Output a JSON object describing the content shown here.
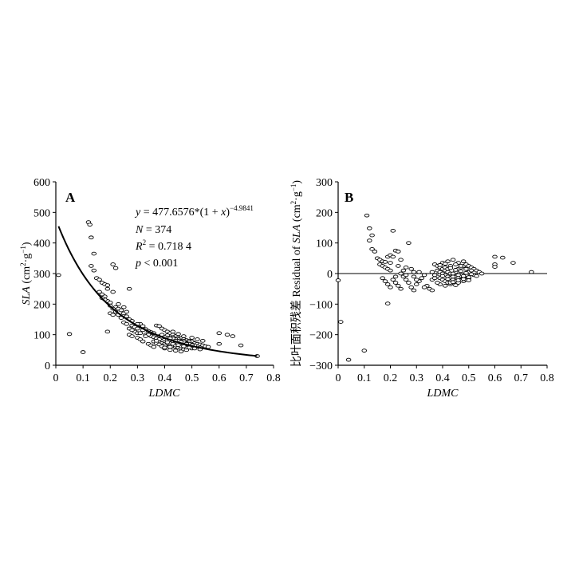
{
  "chart_data": [
    {
      "type": "scatter",
      "panel": "A",
      "xlabel": "LDMC",
      "ylabel_main": "SLA",
      "ylabel_unit_open": " (cm",
      "ylabel_unit_sup1": "2",
      "ylabel_unit_mid": "·g",
      "ylabel_unit_sup2": "−1",
      "ylabel_unit_close": ")",
      "xlim": [
        0,
        0.8
      ],
      "ylim": [
        0,
        600
      ],
      "xticks": [
        "0",
        "0.1",
        "0.2",
        "0.3",
        "0.4",
        "0.5",
        "0.6",
        "0.7",
        "0.8"
      ],
      "yticks": [
        "0",
        "100",
        "200",
        "300",
        "400",
        "500",
        "600"
      ],
      "annotation": {
        "eq_y": "y",
        "eq_body": " = 477.6576*(1 + ",
        "eq_x": "x",
        "eq_close": ")",
        "eq_exp": "−4.9841",
        "n_label": "N",
        "n_value": " = 374",
        "r2_label": "R",
        "r2_sup": "2",
        "r2_value": " = 0.718 4",
        "p_label": "p",
        "p_value": " < 0.001"
      },
      "fit": {
        "a": 477.6576,
        "b": -4.9841,
        "x_range": [
          0.01,
          0.74
        ]
      },
      "points": [
        [
          0.01,
          295
        ],
        [
          0.05,
          102
        ],
        [
          0.1,
          43
        ],
        [
          0.12,
          468
        ],
        [
          0.125,
          460
        ],
        [
          0.13,
          418
        ],
        [
          0.14,
          365
        ],
        [
          0.13,
          325
        ],
        [
          0.14,
          310
        ],
        [
          0.15,
          285
        ],
        [
          0.16,
          280
        ],
        [
          0.17,
          270
        ],
        [
          0.18,
          265
        ],
        [
          0.19,
          262
        ],
        [
          0.16,
          240
        ],
        [
          0.17,
          232
        ],
        [
          0.18,
          225
        ],
        [
          0.19,
          210
        ],
        [
          0.2,
          205
        ],
        [
          0.21,
          330
        ],
        [
          0.22,
          318
        ],
        [
          0.2,
          170
        ],
        [
          0.21,
          165
        ],
        [
          0.22,
          190
        ],
        [
          0.23,
          185
        ],
        [
          0.19,
          110
        ],
        [
          0.24,
          180
        ],
        [
          0.25,
          170
        ],
        [
          0.26,
          160
        ],
        [
          0.27,
          150
        ],
        [
          0.25,
          140
        ],
        [
          0.26,
          135
        ],
        [
          0.27,
          250
        ],
        [
          0.28,
          130
        ],
        [
          0.29,
          125
        ],
        [
          0.3,
          120
        ],
        [
          0.27,
          100
        ],
        [
          0.28,
          95
        ],
        [
          0.3,
          90
        ],
        [
          0.31,
          135
        ],
        [
          0.32,
          128
        ],
        [
          0.33,
          118
        ],
        [
          0.34,
          112
        ],
        [
          0.35,
          108
        ],
        [
          0.36,
          105
        ],
        [
          0.31,
          85
        ],
        [
          0.32,
          78
        ],
        [
          0.34,
          70
        ],
        [
          0.35,
          65
        ],
        [
          0.36,
          60
        ],
        [
          0.37,
          130
        ],
        [
          0.38,
          128
        ],
        [
          0.39,
          120
        ],
        [
          0.4,
          115
        ],
        [
          0.41,
          110
        ],
        [
          0.42,
          105
        ],
        [
          0.43,
          100
        ],
        [
          0.44,
          95
        ],
        [
          0.45,
          90
        ],
        [
          0.46,
          88
        ],
        [
          0.47,
          85
        ],
        [
          0.48,
          82
        ],
        [
          0.49,
          80
        ],
        [
          0.5,
          78
        ],
        [
          0.38,
          95
        ],
        [
          0.39,
          90
        ],
        [
          0.4,
          85
        ],
        [
          0.41,
          82
        ],
        [
          0.42,
          80
        ],
        [
          0.43,
          78
        ],
        [
          0.44,
          75
        ],
        [
          0.45,
          72
        ],
        [
          0.46,
          70
        ],
        [
          0.47,
          68
        ],
        [
          0.48,
          65
        ],
        [
          0.49,
          62
        ],
        [
          0.5,
          60
        ],
        [
          0.38,
          75
        ],
        [
          0.39,
          72
        ],
        [
          0.4,
          70
        ],
        [
          0.41,
          68
        ],
        [
          0.42,
          65
        ],
        [
          0.43,
          62
        ],
        [
          0.44,
          60
        ],
        [
          0.45,
          58
        ],
        [
          0.46,
          55
        ],
        [
          0.47,
          52
        ],
        [
          0.48,
          50
        ],
        [
          0.4,
          55
        ],
        [
          0.42,
          50
        ],
        [
          0.44,
          48
        ],
        [
          0.46,
          45
        ],
        [
          0.39,
          100
        ],
        [
          0.41,
          98
        ],
        [
          0.43,
          92
        ],
        [
          0.45,
          85
        ],
        [
          0.47,
          80
        ],
        [
          0.49,
          75
        ],
        [
          0.51,
          72
        ],
        [
          0.52,
          70
        ],
        [
          0.53,
          68
        ],
        [
          0.54,
          65
        ],
        [
          0.55,
          62
        ],
        [
          0.56,
          60
        ],
        [
          0.4,
          65
        ],
        [
          0.42,
          72
        ],
        [
          0.44,
          85
        ],
        [
          0.46,
          78
        ],
        [
          0.48,
          72
        ],
        [
          0.5,
          68
        ],
        [
          0.52,
          62
        ],
        [
          0.41,
          90
        ],
        [
          0.43,
          88
        ],
        [
          0.45,
          80
        ],
        [
          0.47,
          75
        ],
        [
          0.49,
          70
        ],
        [
          0.51,
          65
        ],
        [
          0.53,
          58
        ],
        [
          0.6,
          105
        ],
        [
          0.63,
          100
        ],
        [
          0.65,
          95
        ],
        [
          0.6,
          70
        ],
        [
          0.68,
          65
        ],
        [
          0.74,
          30
        ],
        [
          0.36,
          78
        ],
        [
          0.37,
          72
        ],
        [
          0.38,
          68
        ],
        [
          0.39,
          62
        ],
        [
          0.4,
          58
        ],
        [
          0.42,
          60
        ],
        [
          0.44,
          65
        ],
        [
          0.46,
          62
        ],
        [
          0.48,
          58
        ],
        [
          0.5,
          55
        ],
        [
          0.35,
          95
        ],
        [
          0.36,
          92
        ],
        [
          0.37,
          88
        ],
        [
          0.33,
          100
        ],
        [
          0.29,
          110
        ],
        [
          0.3,
          105
        ],
        [
          0.24,
          155
        ],
        [
          0.23,
          165
        ],
        [
          0.22,
          175
        ],
        [
          0.21,
          185
        ],
        [
          0.2,
          195
        ],
        [
          0.18,
          215
        ],
        [
          0.17,
          220
        ],
        [
          0.19,
          250
        ],
        [
          0.21,
          240
        ],
        [
          0.23,
          200
        ],
        [
          0.25,
          190
        ],
        [
          0.26,
          175
        ],
        [
          0.28,
          145
        ],
        [
          0.3,
          135
        ],
        [
          0.32,
          115
        ],
        [
          0.34,
          100
        ],
        [
          0.27,
          120
        ],
        [
          0.28,
          115
        ],
        [
          0.31,
          105
        ],
        [
          0.33,
          95
        ],
        [
          0.43,
          110
        ],
        [
          0.45,
          102
        ],
        [
          0.47,
          95
        ],
        [
          0.5,
          90
        ],
        [
          0.52,
          85
        ],
        [
          0.54,
          80
        ],
        [
          0.41,
          75
        ],
        [
          0.43,
          70
        ],
        [
          0.45,
          66
        ],
        [
          0.47,
          62
        ],
        [
          0.49,
          58
        ],
        [
          0.51,
          55
        ],
        [
          0.53,
          52
        ],
        [
          0.4,
          92
        ],
        [
          0.42,
          88
        ],
        [
          0.44,
          80
        ],
        [
          0.46,
          76
        ],
        [
          0.48,
          70
        ],
        [
          0.5,
          66
        ],
        [
          0.38,
          85
        ],
        [
          0.37,
          80
        ]
      ]
    },
    {
      "type": "scatter",
      "panel": "B",
      "xlabel": "LDMC",
      "ylabel_cn": "比叶面积残差",
      "ylabel_en": " Residual of ",
      "ylabel_main": "SLA",
      "ylabel_unit_open": " (cm",
      "ylabel_unit_sup1": "2",
      "ylabel_unit_mid": "·g",
      "ylabel_unit_sup2": "−1",
      "ylabel_unit_close": ")",
      "xlim": [
        0,
        0.8
      ],
      "ylim": [
        -300,
        300
      ],
      "xticks": [
        "0",
        "0.1",
        "0.2",
        "0.3",
        "0.4",
        "0.5",
        "0.6",
        "0.7",
        "0.8"
      ],
      "yticks": [
        "−300",
        "−200",
        "−100",
        "0",
        "100",
        "200",
        "300"
      ],
      "reference_line": 0,
      "points": [
        [
          0.0,
          -22
        ],
        [
          0.01,
          -158
        ],
        [
          0.04,
          -282
        ],
        [
          0.1,
          -252
        ],
        [
          0.11,
          190
        ],
        [
          0.12,
          148
        ],
        [
          0.13,
          125
        ],
        [
          0.12,
          108
        ],
        [
          0.13,
          80
        ],
        [
          0.14,
          72
        ],
        [
          0.15,
          50
        ],
        [
          0.16,
          45
        ],
        [
          0.17,
          40
        ],
        [
          0.18,
          38
        ],
        [
          0.19,
          55
        ],
        [
          0.2,
          60
        ],
        [
          0.16,
          30
        ],
        [
          0.17,
          25
        ],
        [
          0.18,
          20
        ],
        [
          0.19,
          15
        ],
        [
          0.2,
          10
        ],
        [
          0.21,
          140
        ],
        [
          0.22,
          75
        ],
        [
          0.23,
          72
        ],
        [
          0.17,
          -15
        ],
        [
          0.18,
          -25
        ],
        [
          0.19,
          -35
        ],
        [
          0.2,
          -45
        ],
        [
          0.19,
          -98
        ],
        [
          0.21,
          -20
        ],
        [
          0.22,
          -30
        ],
        [
          0.23,
          -40
        ],
        [
          0.24,
          0
        ],
        [
          0.25,
          10
        ],
        [
          0.26,
          20
        ],
        [
          0.27,
          100
        ],
        [
          0.25,
          -10
        ],
        [
          0.26,
          -20
        ],
        [
          0.27,
          -30
        ],
        [
          0.28,
          -45
        ],
        [
          0.29,
          -55
        ],
        [
          0.3,
          -35
        ],
        [
          0.31,
          -25
        ],
        [
          0.32,
          -15
        ],
        [
          0.33,
          -5
        ],
        [
          0.28,
          15
        ],
        [
          0.29,
          5
        ],
        [
          0.34,
          -40
        ],
        [
          0.35,
          -50
        ],
        [
          0.36,
          -55
        ],
        [
          0.37,
          30
        ],
        [
          0.38,
          25
        ],
        [
          0.39,
          20
        ],
        [
          0.4,
          15
        ],
        [
          0.41,
          10
        ],
        [
          0.42,
          5
        ],
        [
          0.43,
          0
        ],
        [
          0.44,
          -5
        ],
        [
          0.45,
          -10
        ],
        [
          0.46,
          -15
        ],
        [
          0.47,
          -20
        ],
        [
          0.48,
          -25
        ],
        [
          0.49,
          -20
        ],
        [
          0.5,
          -15
        ],
        [
          0.38,
          10
        ],
        [
          0.39,
          5
        ],
        [
          0.4,
          0
        ],
        [
          0.41,
          -5
        ],
        [
          0.42,
          -10
        ],
        [
          0.43,
          -15
        ],
        [
          0.44,
          -20
        ],
        [
          0.45,
          -25
        ],
        [
          0.46,
          -30
        ],
        [
          0.47,
          -22
        ],
        [
          0.48,
          -12
        ],
        [
          0.49,
          -5
        ],
        [
          0.5,
          5
        ],
        [
          0.38,
          -10
        ],
        [
          0.39,
          -15
        ],
        [
          0.4,
          -20
        ],
        [
          0.41,
          -25
        ],
        [
          0.42,
          -30
        ],
        [
          0.43,
          -35
        ],
        [
          0.44,
          -10
        ],
        [
          0.45,
          5
        ],
        [
          0.46,
          15
        ],
        [
          0.47,
          20
        ],
        [
          0.48,
          25
        ],
        [
          0.49,
          30
        ],
        [
          0.5,
          25
        ],
        [
          0.51,
          20
        ],
        [
          0.52,
          15
        ],
        [
          0.53,
          10
        ],
        [
          0.54,
          5
        ],
        [
          0.55,
          0
        ],
        [
          0.4,
          35
        ],
        [
          0.42,
          40
        ],
        [
          0.44,
          45
        ],
        [
          0.46,
          35
        ],
        [
          0.48,
          40
        ],
        [
          0.41,
          20
        ],
        [
          0.43,
          25
        ],
        [
          0.45,
          30
        ],
        [
          0.47,
          25
        ],
        [
          0.49,
          15
        ],
        [
          0.51,
          10
        ],
        [
          0.39,
          -35
        ],
        [
          0.41,
          -40
        ],
        [
          0.43,
          -30
        ],
        [
          0.45,
          -38
        ],
        [
          0.36,
          -20
        ],
        [
          0.37,
          -15
        ],
        [
          0.38,
          -30
        ],
        [
          0.36,
          5
        ],
        [
          0.37,
          -5
        ],
        [
          0.6,
          55
        ],
        [
          0.63,
          52
        ],
        [
          0.6,
          30
        ],
        [
          0.6,
          22
        ],
        [
          0.67,
          35
        ],
        [
          0.74,
          5
        ],
        [
          0.24,
          -50
        ],
        [
          0.22,
          -10
        ],
        [
          0.23,
          25
        ],
        [
          0.24,
          45
        ],
        [
          0.21,
          55
        ],
        [
          0.2,
          35
        ],
        [
          0.26,
          -5
        ],
        [
          0.3,
          -20
        ],
        [
          0.33,
          -45
        ],
        [
          0.29,
          -10
        ],
        [
          0.31,
          5
        ],
        [
          0.42,
          15
        ],
        [
          0.44,
          0
        ],
        [
          0.46,
          -5
        ],
        [
          0.48,
          -8
        ],
        [
          0.5,
          -12
        ],
        [
          0.52,
          -5
        ],
        [
          0.4,
          -8
        ],
        [
          0.42,
          -18
        ],
        [
          0.44,
          -28
        ],
        [
          0.46,
          -22
        ],
        [
          0.48,
          -18
        ],
        [
          0.5,
          -22
        ],
        [
          0.39,
          28
        ],
        [
          0.41,
          32
        ],
        [
          0.43,
          18
        ],
        [
          0.45,
          12
        ],
        [
          0.47,
          8
        ],
        [
          0.49,
          2
        ],
        [
          0.51,
          -2
        ],
        [
          0.53,
          -8
        ]
      ]
    }
  ]
}
